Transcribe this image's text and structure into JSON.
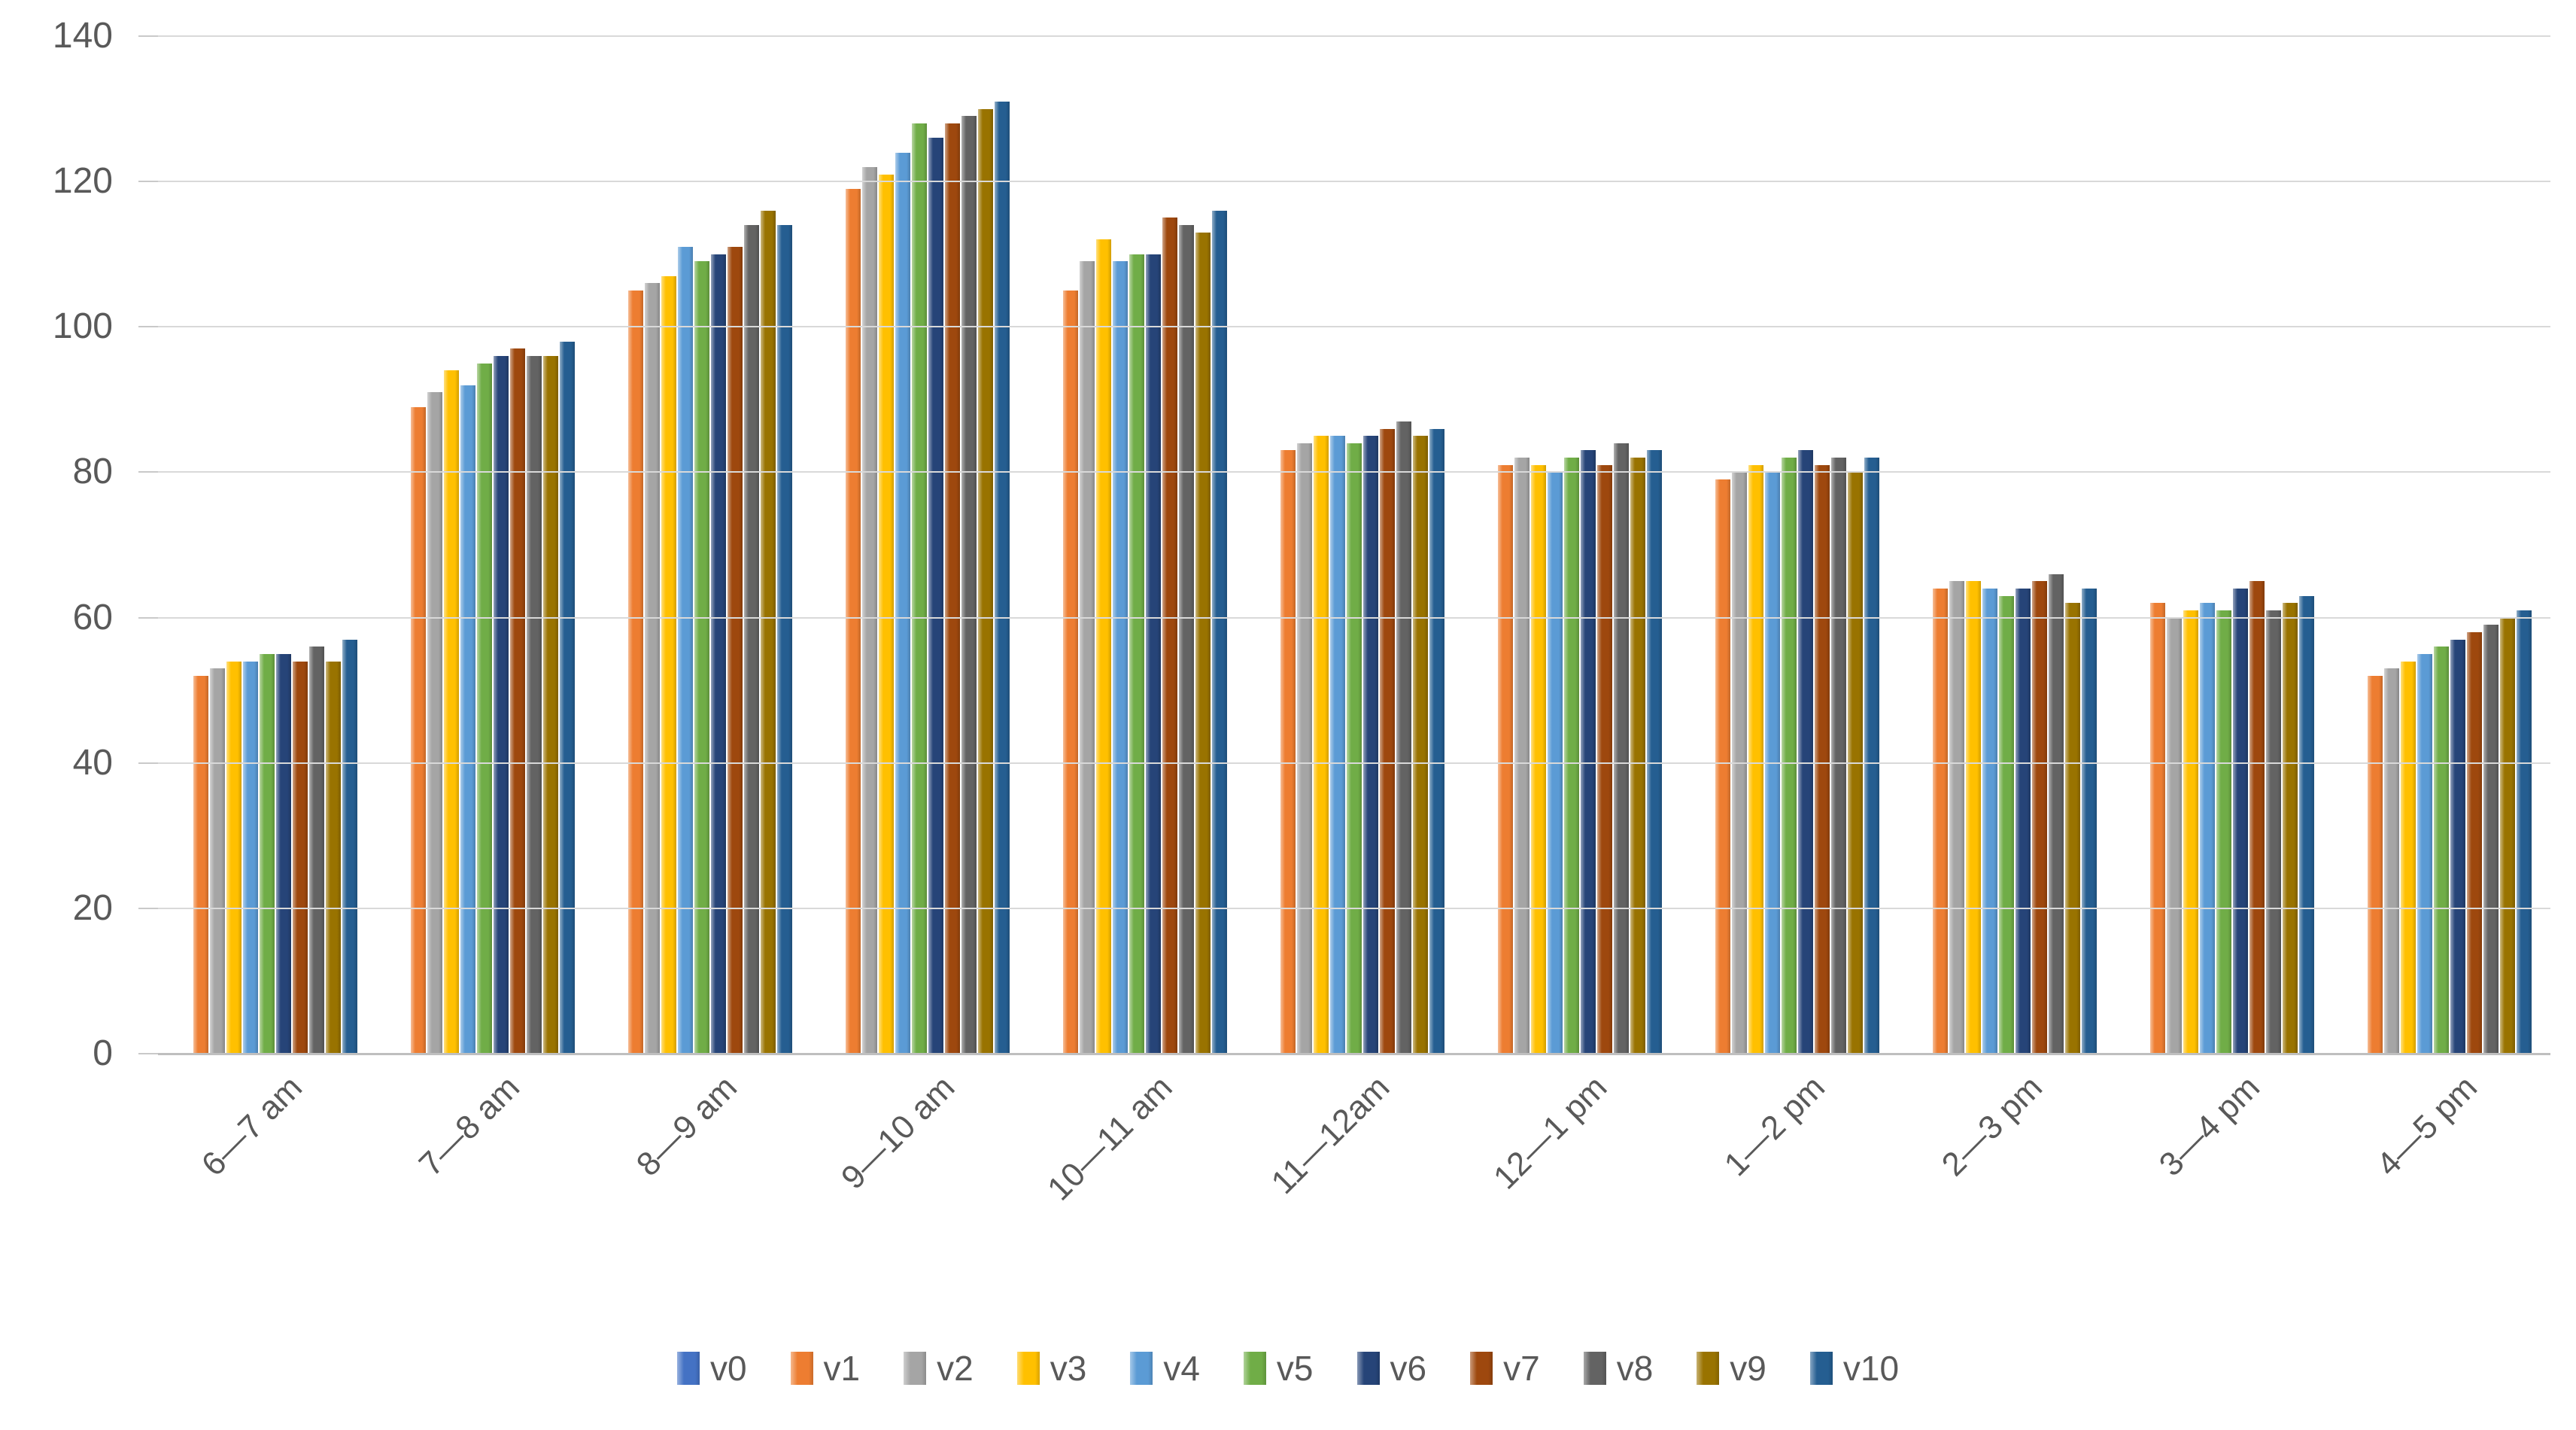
{
  "chart_data": {
    "type": "bar",
    "title": "",
    "xlabel": "",
    "ylabel": "",
    "ylim": [
      0,
      140
    ],
    "yticks": [
      0,
      20,
      40,
      60,
      80,
      100,
      120,
      140
    ],
    "grid": "horizontal",
    "legend_position": "bottom",
    "colors": {
      "grid_color": "#D9D9D9",
      "axis_line_color": "#BFBFBF",
      "label_color": "#595959",
      "background": "#FFFFFF"
    },
    "categories": [
      "6—7 am",
      "7—8 am",
      "8—9 am",
      "9—10 am",
      "10—11 am",
      "11—12am",
      "12—1 pm",
      "1—2 pm",
      "2—3 pm",
      "3—4 pm",
      "4—5 pm"
    ],
    "series": [
      {
        "name": "v0",
        "color": "#4472C4",
        "values": [
          0,
          0,
          0,
          0,
          0,
          0,
          0,
          0,
          0,
          0,
          0
        ]
      },
      {
        "name": "v1",
        "color": "#ED7D31",
        "values": [
          52,
          89,
          105,
          119,
          105,
          83,
          81,
          79,
          64,
          62,
          52
        ]
      },
      {
        "name": "v2",
        "color": "#A5A5A5",
        "values": [
          53,
          91,
          106,
          122,
          109,
          84,
          82,
          80,
          65,
          60,
          53
        ]
      },
      {
        "name": "v3",
        "color": "#FFC000",
        "values": [
          54,
          94,
          107,
          121,
          112,
          85,
          81,
          81,
          65,
          61,
          54
        ]
      },
      {
        "name": "v4",
        "color": "#5B9BD5",
        "values": [
          54,
          92,
          111,
          124,
          109,
          85,
          80,
          80,
          64,
          62,
          55
        ]
      },
      {
        "name": "v5",
        "color": "#70AD47",
        "values": [
          55,
          95,
          109,
          128,
          110,
          84,
          82,
          82,
          63,
          61,
          56
        ]
      },
      {
        "name": "v6",
        "color": "#264478",
        "values": [
          55,
          96,
          110,
          126,
          110,
          85,
          83,
          83,
          64,
          64,
          57
        ]
      },
      {
        "name": "v7",
        "color": "#9E480E",
        "values": [
          54,
          97,
          111,
          128,
          115,
          86,
          81,
          81,
          65,
          65,
          58
        ]
      },
      {
        "name": "v8",
        "color": "#636363",
        "values": [
          56,
          96,
          114,
          129,
          114,
          87,
          84,
          82,
          66,
          61,
          59
        ]
      },
      {
        "name": "v9",
        "color": "#997300",
        "values": [
          54,
          96,
          116,
          130,
          113,
          85,
          82,
          80,
          62,
          62,
          60
        ]
      },
      {
        "name": "v10",
        "color": "#255E91",
        "values": [
          57,
          98,
          114,
          131,
          116,
          86,
          83,
          82,
          64,
          63,
          61
        ]
      }
    ]
  }
}
